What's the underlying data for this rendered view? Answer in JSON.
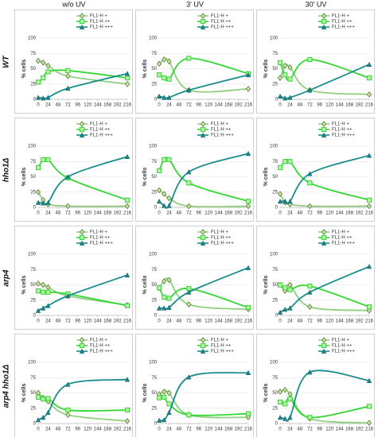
{
  "column_headers": [
    "w/o UV",
    "3' UV",
    "30' UV"
  ],
  "row_labels": [
    "WT",
    "hho1Δ",
    "arp4",
    "arp4 hho1Δ"
  ],
  "chart_data": [
    {
      "type": "line",
      "ylabel": "% cells",
      "x": [
        0,
        12,
        24,
        72,
        216
      ],
      "xlim": [
        0,
        216
      ],
      "xticks": [
        0,
        24,
        48,
        72,
        96,
        120,
        144,
        168,
        192,
        216
      ],
      "ylim": [
        0,
        100
      ],
      "yticks": [
        0,
        25,
        50,
        75,
        100
      ],
      "grid": true,
      "series": [
        {
          "name": "FL1-H +",
          "color": "#8fcf7f",
          "marker": "diamond",
          "values": [
            63,
            60,
            55,
            38,
            25
          ]
        },
        {
          "name": "FL1-H ++",
          "color": "#33d633",
          "marker": "square",
          "values": [
            28,
            35,
            45,
            47,
            35
          ]
        },
        {
          "name": "FL1-H +++",
          "color": "#1a8c8c",
          "marker": "triangle",
          "values": [
            3,
            2,
            3,
            18,
            42
          ]
        }
      ]
    },
    {
      "type": "line",
      "ylabel": "% cells",
      "x": [
        0,
        12,
        24,
        72,
        216
      ],
      "xlim": [
        0,
        216
      ],
      "xticks": [
        0,
        24,
        48,
        72,
        96,
        120,
        144,
        168,
        192,
        216
      ],
      "ylim": [
        0,
        100
      ],
      "yticks": [
        0,
        25,
        50,
        75,
        100
      ],
      "grid": true,
      "series": [
        {
          "name": "FL1-H +",
          "color": "#8fcf7f",
          "marker": "diamond",
          "values": [
            58,
            65,
            62,
            15,
            17
          ]
        },
        {
          "name": "FL1-H ++",
          "color": "#33d633",
          "marker": "square",
          "values": [
            40,
            35,
            33,
            67,
            42
          ]
        },
        {
          "name": "FL1-H +++",
          "color": "#1a8c8c",
          "marker": "triangle",
          "values": [
            5,
            3,
            3,
            15,
            40
          ]
        }
      ]
    },
    {
      "type": "line",
      "ylabel": "% cells",
      "x": [
        0,
        12,
        24,
        72,
        216
      ],
      "xlim": [
        0,
        216
      ],
      "xticks": [
        0,
        24,
        48,
        72,
        96,
        120,
        144,
        168,
        192,
        216
      ],
      "ylim": [
        0,
        100
      ],
      "yticks": [
        0,
        25,
        50,
        75,
        100
      ],
      "grid": true,
      "series": [
        {
          "name": "FL1-H +",
          "color": "#8fcf7f",
          "marker": "diamond",
          "values": [
            35,
            55,
            52,
            15,
            8
          ]
        },
        {
          "name": "FL1-H ++",
          "color": "#33d633",
          "marker": "square",
          "values": [
            60,
            40,
            33,
            65,
            35
          ]
        },
        {
          "name": "FL1-H +++",
          "color": "#1a8c8c",
          "marker": "triangle",
          "values": [
            5,
            2,
            3,
            15,
            57
          ]
        }
      ]
    },
    {
      "type": "line",
      "ylabel": "% cells",
      "x": [
        0,
        12,
        24,
        72,
        216
      ],
      "xlim": [
        0,
        216
      ],
      "xticks": [
        0,
        24,
        48,
        72,
        96,
        120,
        144,
        168,
        192,
        216
      ],
      "ylim": [
        0,
        100
      ],
      "yticks": [
        0,
        25,
        50,
        75,
        100
      ],
      "grid": true,
      "series": [
        {
          "name": "FL1-H +",
          "color": "#8fcf7f",
          "marker": "diamond",
          "values": [
            25,
            12,
            5,
            2,
            2
          ]
        },
        {
          "name": "FL1-H ++",
          "color": "#33d633",
          "marker": "square",
          "values": [
            65,
            78,
            78,
            48,
            12
          ]
        },
        {
          "name": "FL1-H +++",
          "color": "#1a8c8c",
          "marker": "triangle",
          "values": [
            8,
            7,
            8,
            50,
            83
          ]
        }
      ]
    },
    {
      "type": "line",
      "ylabel": "% cells",
      "x": [
        0,
        12,
        24,
        72,
        216
      ],
      "xlim": [
        0,
        216
      ],
      "xticks": [
        0,
        24,
        48,
        72,
        96,
        120,
        144,
        168,
        192,
        216
      ],
      "ylim": [
        0,
        100
      ],
      "yticks": [
        0,
        25,
        50,
        75,
        100
      ],
      "grid": true,
      "series": [
        {
          "name": "FL1-H +",
          "color": "#8fcf7f",
          "marker": "diamond",
          "values": [
            28,
            22,
            15,
            2,
            2
          ]
        },
        {
          "name": "FL1-H ++",
          "color": "#33d633",
          "marker": "square",
          "values": [
            60,
            78,
            78,
            40,
            10
          ]
        },
        {
          "name": "FL1-H +++",
          "color": "#1a8c8c",
          "marker": "triangle",
          "values": [
            10,
            3,
            3,
            58,
            88
          ]
        }
      ]
    },
    {
      "type": "line",
      "ylabel": "% cells",
      "x": [
        0,
        12,
        24,
        72,
        216
      ],
      "xlim": [
        0,
        216
      ],
      "xticks": [
        0,
        24,
        48,
        72,
        96,
        120,
        144,
        168,
        192,
        216
      ],
      "ylim": [
        0,
        100
      ],
      "yticks": [
        0,
        25,
        50,
        75,
        100
      ],
      "grid": true,
      "series": [
        {
          "name": "FL1-H +",
          "color": "#8fcf7f",
          "marker": "diamond",
          "values": [
            22,
            8,
            5,
            2,
            2
          ]
        },
        {
          "name": "FL1-H ++",
          "color": "#33d633",
          "marker": "square",
          "values": [
            65,
            75,
            75,
            40,
            12
          ]
        },
        {
          "name": "FL1-H +++",
          "color": "#1a8c8c",
          "marker": "triangle",
          "values": [
            10,
            10,
            10,
            55,
            85
          ]
        }
      ]
    },
    {
      "type": "line",
      "ylabel": "% cells",
      "x": [
        0,
        12,
        24,
        72,
        216
      ],
      "xlim": [
        0,
        216
      ],
      "xticks": [
        0,
        24,
        48,
        72,
        96,
        120,
        144,
        168,
        192,
        216
      ],
      "ylim": [
        0,
        100
      ],
      "yticks": [
        0,
        25,
        50,
        75,
        100
      ],
      "grid": true,
      "series": [
        {
          "name": "FL1-H +",
          "color": "#8fcf7f",
          "marker": "diamond",
          "values": [
            52,
            50,
            46,
            32,
            17
          ]
        },
        {
          "name": "FL1-H ++",
          "color": "#33d633",
          "marker": "square",
          "values": [
            40,
            38,
            38,
            35,
            16
          ]
        },
        {
          "name": "FL1-H +++",
          "color": "#1a8c8c",
          "marker": "triangle",
          "values": [
            8,
            12,
            16,
            32,
            66
          ]
        }
      ]
    },
    {
      "type": "line",
      "ylabel": "% cells",
      "x": [
        0,
        12,
        24,
        72,
        216
      ],
      "xlim": [
        0,
        216
      ],
      "xticks": [
        0,
        24,
        48,
        72,
        96,
        120,
        144,
        168,
        192,
        216
      ],
      "ylim": [
        0,
        100
      ],
      "yticks": [
        0,
        25,
        50,
        75,
        100
      ],
      "grid": true,
      "series": [
        {
          "name": "FL1-H +",
          "color": "#8fcf7f",
          "marker": "diamond",
          "values": [
            45,
            56,
            58,
            18,
            10
          ]
        },
        {
          "name": "FL1-H ++",
          "color": "#33d633",
          "marker": "square",
          "values": [
            45,
            30,
            28,
            44,
            13
          ]
        },
        {
          "name": "FL1-H +++",
          "color": "#1a8c8c",
          "marker": "triangle",
          "values": [
            12,
            12,
            13,
            38,
            78
          ]
        }
      ]
    },
    {
      "type": "line",
      "ylabel": "% cells",
      "x": [
        0,
        12,
        24,
        72,
        216
      ],
      "xlim": [
        0,
        216
      ],
      "xticks": [
        0,
        24,
        48,
        72,
        96,
        120,
        144,
        168,
        192,
        216
      ],
      "ylim": [
        0,
        100
      ],
      "yticks": [
        0,
        25,
        50,
        75,
        100
      ],
      "grid": true,
      "series": [
        {
          "name": "FL1-H +",
          "color": "#8fcf7f",
          "marker": "diamond",
          "values": [
            50,
            40,
            50,
            14,
            8
          ]
        },
        {
          "name": "FL1-H ++",
          "color": "#33d633",
          "marker": "square",
          "values": [
            50,
            45,
            42,
            48,
            14
          ]
        },
        {
          "name": "FL1-H +++",
          "color": "#1a8c8c",
          "marker": "triangle",
          "values": [
            5,
            10,
            12,
            38,
            80
          ]
        }
      ]
    },
    {
      "type": "line",
      "ylabel": "% cells",
      "x": [
        0,
        12,
        24,
        72,
        216
      ],
      "xlim": [
        0,
        216
      ],
      "xticks": [
        0,
        24,
        48,
        72,
        96,
        120,
        144,
        168,
        192,
        216
      ],
      "ylim": [
        0,
        100
      ],
      "yticks": [
        0,
        25,
        50,
        75,
        100
      ],
      "grid": true,
      "series": [
        {
          "name": "FL1-H +",
          "color": "#8fcf7f",
          "marker": "diamond",
          "values": [
            50,
            42,
            36,
            14,
            4
          ]
        },
        {
          "name": "FL1-H ++",
          "color": "#33d633",
          "marker": "square",
          "values": [
            43,
            40,
            41,
            22,
            22
          ]
        },
        {
          "name": "FL1-H +++",
          "color": "#1a8c8c",
          "marker": "triangle",
          "values": [
            6,
            10,
            18,
            64,
            72
          ]
        }
      ]
    },
    {
      "type": "line",
      "ylabel": "% cells",
      "x": [
        0,
        12,
        24,
        72,
        216
      ],
      "xlim": [
        0,
        216
      ],
      "xticks": [
        0,
        24,
        48,
        72,
        96,
        120,
        144,
        168,
        192,
        216
      ],
      "ylim": [
        0,
        100
      ],
      "yticks": [
        0,
        25,
        50,
        75,
        100
      ],
      "grid": true,
      "series": [
        {
          "name": "FL1-H +",
          "color": "#8fcf7f",
          "marker": "diamond",
          "values": [
            48,
            52,
            50,
            14,
            10
          ]
        },
        {
          "name": "FL1-H ++",
          "color": "#33d633",
          "marker": "square",
          "values": [
            42,
            43,
            32,
            14,
            16
          ]
        },
        {
          "name": "FL1-H +++",
          "color": "#1a8c8c",
          "marker": "triangle",
          "values": [
            5,
            6,
            18,
            76,
            83
          ]
        }
      ]
    },
    {
      "type": "line",
      "ylabel": "% cells",
      "x": [
        0,
        12,
        24,
        72,
        216
      ],
      "xlim": [
        0,
        216
      ],
      "xticks": [
        0,
        24,
        48,
        72,
        96,
        120,
        144,
        168,
        192,
        216
      ],
      "ylim": [
        0,
        100
      ],
      "yticks": [
        0,
        25,
        50,
        75,
        100
      ],
      "grid": true,
      "series": [
        {
          "name": "FL1-H +",
          "color": "#8fcf7f",
          "marker": "diamond",
          "values": [
            52,
            55,
            48,
            8,
            1
          ]
        },
        {
          "name": "FL1-H ++",
          "color": "#33d633",
          "marker": "square",
          "values": [
            35,
            32,
            40,
            10,
            28
          ]
        },
        {
          "name": "FL1-H +++",
          "color": "#1a8c8c",
          "marker": "triangle",
          "values": [
            10,
            8,
            10,
            84,
            70
          ]
        }
      ]
    }
  ]
}
